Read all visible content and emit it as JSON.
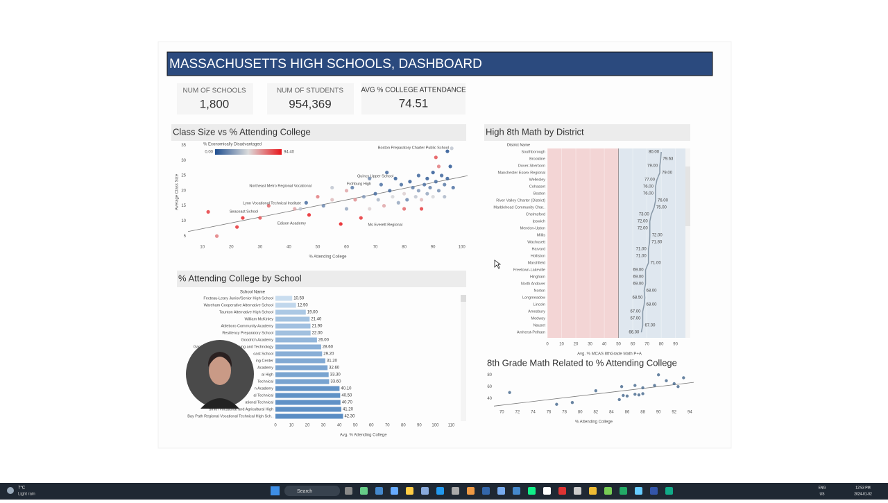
{
  "header": {
    "title": "MASSACHUSETTS HIGH SCHOOLS, DASHBOARD"
  },
  "kpis": [
    {
      "label": "NUM OF SCHOOLS",
      "value": "1,800"
    },
    {
      "label": "NUM OF STUDENTS",
      "value": "954,369"
    },
    {
      "label": "AVG % COLLEGE ATTENDANCE",
      "value": "74.51"
    }
  ],
  "chart_data": [
    {
      "type": "scatter",
      "title": "Class Size vs % Attending College",
      "x_label": "% Attending College",
      "y_label": "Average Class Size",
      "xlim": [
        5,
        102
      ],
      "ylim": [
        3,
        36
      ],
      "xticks": [
        10,
        20,
        30,
        40,
        50,
        60,
        70,
        80,
        90,
        100
      ],
      "yticks": [
        5,
        10,
        15,
        20,
        25,
        30,
        35
      ],
      "x": [
        12,
        15,
        22,
        24,
        30,
        33,
        42,
        44,
        47,
        52,
        55,
        58,
        60,
        62,
        63,
        65,
        66,
        68,
        70,
        71,
        72,
        73,
        75,
        76,
        77,
        78,
        79,
        80,
        81,
        82,
        83,
        84,
        85,
        85,
        86,
        87,
        88,
        88,
        89,
        90,
        90,
        91,
        92,
        92,
        93,
        94,
        94,
        95,
        96,
        97,
        60,
        55,
        50,
        80,
        86,
        46,
        68,
        74,
        91,
        95,
        96.5
      ],
      "y": [
        13,
        5,
        8,
        11,
        11,
        15,
        14,
        14,
        12,
        15,
        17,
        9,
        14,
        21,
        17,
        11,
        18,
        14,
        19,
        17,
        22,
        15,
        20,
        18,
        24,
        16,
        22,
        19,
        17,
        23,
        21,
        18,
        25,
        20,
        17,
        22,
        19,
        24,
        21,
        26,
        18,
        23,
        20,
        28,
        25,
        22,
        18,
        24,
        28,
        21,
        20,
        21,
        18,
        14,
        14,
        16,
        24,
        26,
        31,
        33,
        34
      ],
      "color_values": [
        85,
        70,
        88,
        90,
        80,
        75,
        60,
        40,
        92,
        20,
        55,
        94.4,
        30,
        15,
        65,
        88,
        25,
        50,
        10,
        35,
        12,
        60,
        8,
        45,
        5,
        30,
        10,
        50,
        20,
        6,
        15,
        40,
        8,
        25,
        55,
        12,
        30,
        5,
        18,
        4,
        45,
        10,
        22,
        70,
        8,
        15,
        35,
        6,
        3,
        12,
        60,
        40,
        70,
        75,
        85,
        10,
        20,
        9,
        80,
        2,
        40
      ],
      "colorbar": {
        "title": "% Economically Disadvantaged",
        "min": {
          "value": 0,
          "label": "0.00"
        },
        "max": {
          "value": 94.4,
          "label": "94.40"
        },
        "colors": [
          "#1f4e8f",
          "#dcdcdc",
          "#e8161b"
        ]
      },
      "annotations": [
        "Boston Preparatory Charter Public School",
        "Quincy Upper School",
        "Frohburg High",
        "Northeast Metro Regional Vocational",
        "Lynn Vocational Technical Institute",
        "Seacoast School",
        "Edison Academy",
        "Ms Everett Regional"
      ],
      "trendline": true
    },
    {
      "type": "bar",
      "orientation": "horizontal",
      "title": "% Attending College by School",
      "category_label": "School Name",
      "x_label": "Avg. % Attending College",
      "categories": [
        "Fecteau-Leary Junior/Senior High School",
        "Wareham Cooperative Alternative School",
        "Taunton Alternative High School",
        "William McKinley",
        "Attleboro Community Academy",
        "Resiliency Preparatory School",
        "Goodrich Academy",
        "Gardner Academy for Learning and Technology",
        "oast School",
        "ing Center",
        "Academy",
        "al High",
        "Technical",
        "n Academy",
        "al Technical",
        "ational Technical",
        "Smith Vocational and Agricultural High",
        "Bay Path Regional Vocational Technical High Sch.."
      ],
      "values": [
        10.5,
        12.9,
        19,
        21.4,
        21.9,
        22,
        26,
        28.6,
        29.2,
        31.2,
        32.6,
        33.3,
        33.6,
        40.1,
        40.5,
        40.7,
        41.2,
        42.3
      ],
      "value_labels": [
        "10.50",
        "12.90",
        "19.00",
        "21.40",
        "21.90",
        "22.00",
        "26.00",
        "28.60",
        "29.20",
        "31.20",
        "32.60",
        "33.30",
        "33.60",
        "40.10",
        "40.50",
        "40.70",
        "41.20",
        "42.30"
      ],
      "xlim": [
        0,
        115
      ],
      "xticks": [
        0,
        10,
        20,
        30,
        40,
        50,
        60,
        70,
        80,
        90,
        100,
        110
      ],
      "colors": [
        "#c9ddef",
        "#5a8dc4"
      ]
    },
    {
      "type": "line",
      "orientation": "horizontal",
      "title": "High 8th Math by District",
      "category_label": "District Name",
      "x_label": "Avg. % MCAS 8thGrade Math P+A",
      "categories": [
        "Southborough",
        "Brookline",
        "Dover-Sherborn",
        "Manchester Essex Regional",
        "Wellesley",
        "Cohasset",
        "Boston",
        "River Valley Charter (District)",
        "Marblehead Community Char..",
        "Chelmsford",
        "Ipswich",
        "Mendon-Upton",
        "Millis",
        "Wachusett",
        "Harvard",
        "Holliston",
        "Marshfield",
        "Freetown-Lakeville",
        "Hingham",
        "North Andover",
        "Norton",
        "Longmeadow",
        "Lincoln",
        "Amesbury",
        "Medway",
        "Nauset",
        "Amherst-Pelham"
      ],
      "values": [
        80,
        79.63,
        79,
        79,
        77,
        76,
        76,
        76,
        75,
        73,
        72,
        72,
        72,
        71.8,
        71,
        71,
        71,
        69,
        69,
        69,
        68,
        68.5,
        68,
        67,
        67,
        67,
        66
      ],
      "value_labels": [
        "80.00",
        "79.63",
        "79.00",
        "79.00",
        "77.00",
        "76.00",
        "76.00",
        "76.00",
        "75.00",
        "73.00",
        "72.00",
        "72.00",
        "72.00",
        "71.80",
        "71.00",
        "71.00",
        "71.00",
        "69.00",
        "69.00",
        "69.00",
        "68.00",
        "68.50",
        "68.00",
        "67.00",
        "67.00",
        "67.00",
        "66.00"
      ],
      "xlim": [
        0,
        97
      ],
      "xticks": [
        0,
        10,
        20,
        30,
        40,
        50,
        60,
        70,
        80,
        90
      ],
      "band_split": 50,
      "band_colors": [
        "#f3d5d5",
        "#dfe7ef"
      ],
      "color": "#8797a6",
      "grid": true
    },
    {
      "type": "scatter",
      "title": "8th Grade Math Related to % Attending College",
      "x_label": "% Attending College",
      "xlim": [
        69,
        94.5
      ],
      "ylim": [
        25,
        85
      ],
      "xticks": [
        70,
        72,
        74,
        76,
        78,
        80,
        82,
        84,
        86,
        88,
        90,
        92,
        94
      ],
      "yticks": [
        40,
        60,
        80
      ],
      "x": [
        71,
        77,
        79,
        82,
        85,
        85.3,
        85.5,
        86,
        87,
        87,
        87.5,
        88,
        88,
        89.5,
        90,
        91,
        92,
        92.5,
        93.2
      ],
      "y": [
        50,
        30,
        33,
        53,
        38,
        60,
        45,
        44,
        47,
        62,
        46,
        48,
        58,
        62,
        80,
        70,
        65,
        60,
        75
      ],
      "color": "#4e6f92",
      "trendline": true
    }
  ],
  "taskbar": {
    "weather_temp": "7°C",
    "weather_text": "Light rain",
    "search": "Search",
    "lang": "ENG",
    "region": "US",
    "time": "12:53 PM",
    "date": "2024-01-02"
  }
}
